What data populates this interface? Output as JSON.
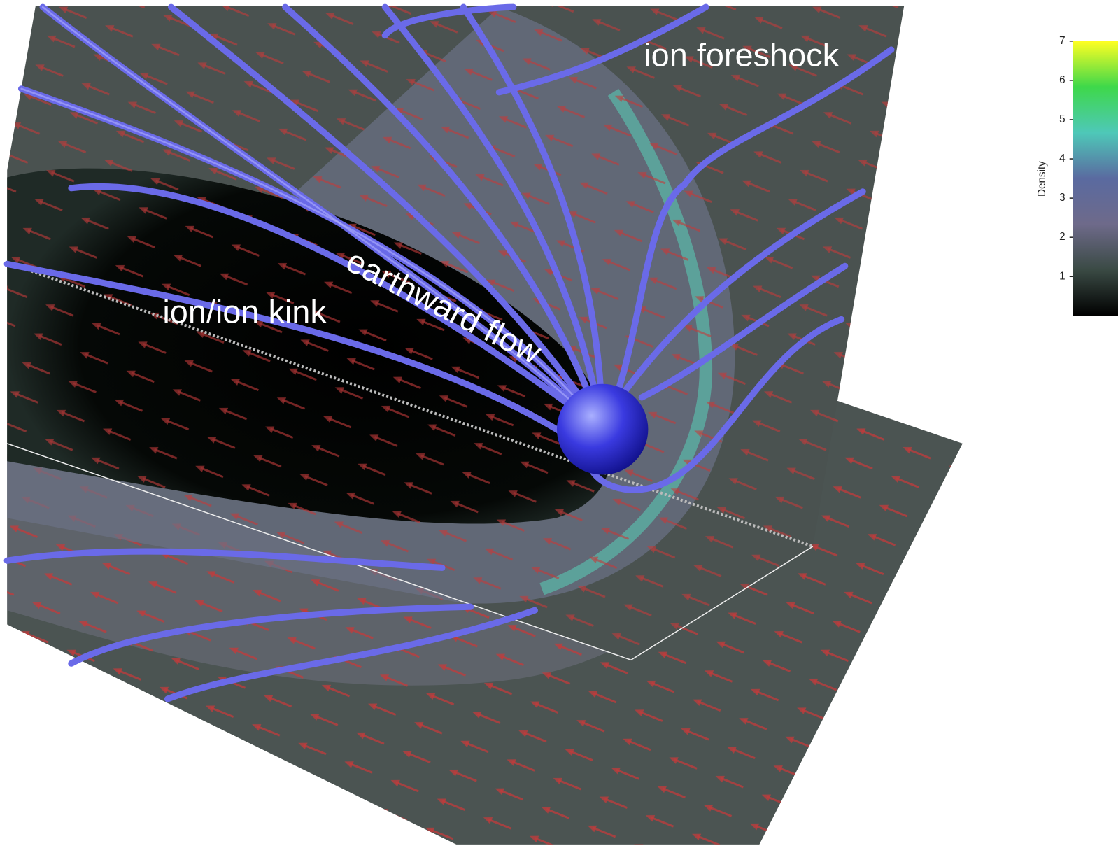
{
  "annotations": [
    "ion foreshock",
    "earthward flow",
    "ion/ion kink"
  ],
  "colorbar": {
    "label": "Density",
    "range": [
      0,
      7
    ],
    "ticks": [
      1,
      2,
      3,
      4,
      5,
      6,
      7
    ],
    "colors": [
      "#000000",
      "#3a4a44",
      "#6e6a8a",
      "#5a6aa0",
      "#4ec8b8",
      "#3ed84a",
      "#ffff22"
    ]
  }
}
